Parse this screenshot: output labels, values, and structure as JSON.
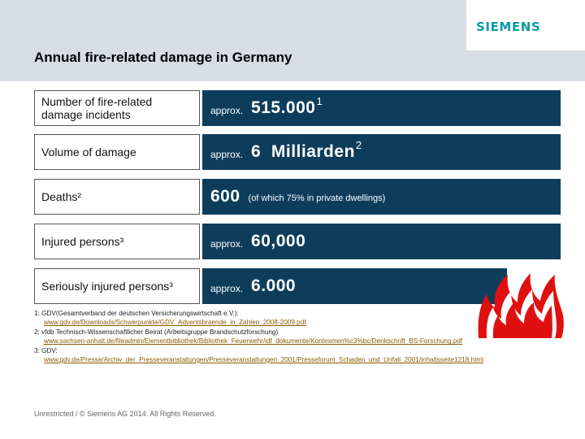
{
  "header": {
    "logo_text": "SIEMENS",
    "title": "Annual fire-related damage in Germany"
  },
  "rows": [
    {
      "label": "Number of fire-related damage incidents",
      "prefix": "approx.",
      "value": "515.000",
      "sup": "1",
      "note": ""
    },
    {
      "label": "Volume of damage",
      "prefix": "approx.",
      "value": "6  Milliarden",
      "sup": "2",
      "note": ""
    },
    {
      "label": "Deaths²",
      "prefix": "",
      "value": "600",
      "sup": "",
      "note": "(of which 75% in private dwellings)"
    },
    {
      "label": "Injured persons³",
      "prefix": "approx.",
      "value": "60,000",
      "sup": "",
      "note": ""
    },
    {
      "label": "Seriously injured persons³",
      "prefix": "approx.",
      "value": "6.000",
      "sup": "",
      "note": ""
    }
  ],
  "footnotes": [
    {
      "text": "1: GDV(Gesamtverband der deutschen Versicherungswirtschaft e.V.):",
      "link": "www.gdv.de/Downloads/Schwerpunkte/GDV_Adventsbraende_in_Zahlen_2008-2009.pdf"
    },
    {
      "text": "2: vfdb Technisch-Wissenschaftlicher Beirat (Arbeitsgruppe Brandschutzforschung)",
      "link": "www.sachsen-anhalt.de/fileadmin/Elementbibliothek/Bibliothek_Feuerwehr/idf_dokumente/Kontexmen%c3%bc/Denkschrift_BS-Forschung.pdf"
    },
    {
      "text": "3: GDV:",
      "link": "www.gdv.de/Presse/Archiv_der_Presseveranstaltungen/Presseveranstaltungen_2001/Presseforum_Schaden_und_Unfall_2001/inhaltsseite1218.html"
    }
  ],
  "footer": "Unrestricted / © Siemens AG 2014. All Rights Reserved.",
  "colors": {
    "header_bg": "#d7dde3",
    "value_bg": "#0e3d5c",
    "logo": "#0b9ba6",
    "flame_red": "#e01010"
  },
  "icons": {
    "flames": "fire-icon"
  }
}
